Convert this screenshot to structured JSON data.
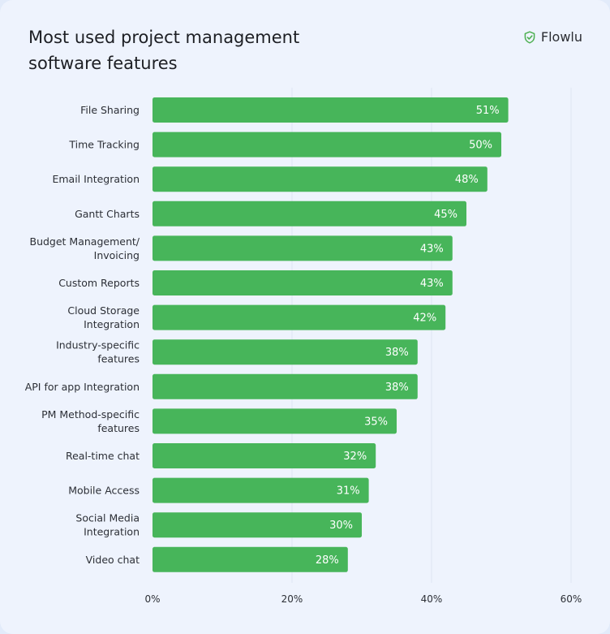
{
  "header": {
    "title": "Most used project management\nsoftware features",
    "brand_name": "Flowlu",
    "brand_icon": "check-shield-icon",
    "brand_color": "#4caf50"
  },
  "colors": {
    "bar": "#47b55a",
    "grid": "#dde4f2",
    "background": "#eef3fd"
  },
  "chart_data": {
    "type": "bar",
    "orientation": "horizontal",
    "title": "Most used project management software features",
    "xlabel": "",
    "ylabel": "",
    "categories": [
      "File Sharing",
      "Time Tracking",
      "Email Integration",
      "Gantt Charts",
      "Budget Management/ Invoicing",
      "Custom Reports",
      "Cloud Storage Integration",
      "Industry-specific features",
      "API for app Integration",
      "PM Method-specific features",
      "Real-time chat",
      "Mobile Access",
      "Social Media Integration",
      "Video chat"
    ],
    "category_lines": [
      [
        "File Sharing"
      ],
      [
        "Time Tracking"
      ],
      [
        "Email Integration"
      ],
      [
        "Gantt Charts"
      ],
      [
        "Budget Management/",
        "Invoicing"
      ],
      [
        "Custom Reports"
      ],
      [
        "Cloud Storage",
        "Integration"
      ],
      [
        "Industry-specific",
        "features"
      ],
      [
        "API for app Integration"
      ],
      [
        "PM Method-specific",
        "features"
      ],
      [
        "Real-time chat"
      ],
      [
        "Mobile Access"
      ],
      [
        "Social Media",
        "Integration"
      ],
      [
        "Video chat"
      ]
    ],
    "values": [
      51,
      50,
      48,
      45,
      43,
      43,
      42,
      38,
      38,
      35,
      32,
      31,
      30,
      28
    ],
    "value_labels": [
      "51%",
      "50%",
      "48%",
      "45%",
      "43%",
      "43%",
      "42%",
      "38%",
      "38%",
      "35%",
      "32%",
      "31%",
      "30%",
      "28%"
    ],
    "xlim": [
      0,
      60
    ],
    "x_ticks": [
      0,
      20,
      40,
      60
    ],
    "x_tick_labels": [
      "0%",
      "20%",
      "40%",
      "60%"
    ],
    "grid": true,
    "legend": "none"
  }
}
